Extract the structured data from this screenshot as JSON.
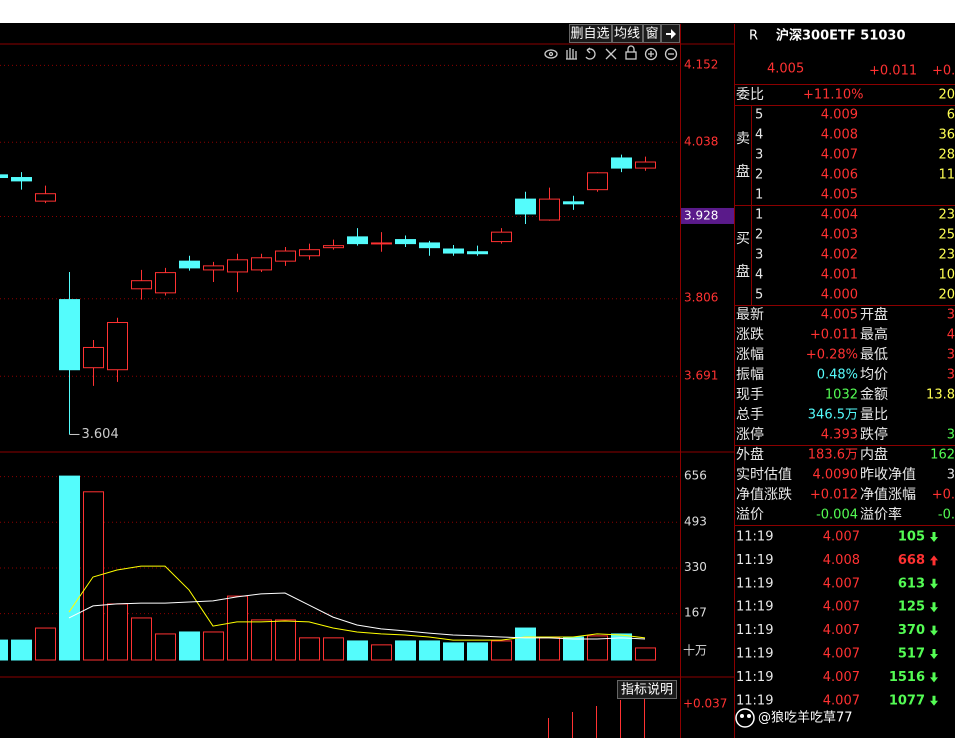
{
  "toolbar": {
    "buttons": [
      "删自选",
      "均线",
      "窗"
    ]
  },
  "chart_data": [
    {
      "type": "candlestick",
      "categories": [
        null,
        null,
        null,
        null,
        null,
        null,
        null,
        null,
        null,
        null,
        null,
        null,
        null,
        null,
        null,
        null,
        null,
        null,
        null,
        null,
        null,
        null,
        null,
        null,
        null,
        null,
        null,
        null
      ],
      "open": [
        3.989,
        3.985,
        3.95,
        3.804,
        3.703,
        3.7,
        3.82,
        3.814,
        3.861,
        3.848,
        3.845,
        3.848,
        3.861,
        3.869,
        3.881,
        3.897,
        3.887,
        3.893,
        3.888,
        3.879,
        3.875,
        3.89,
        3.953,
        3.922,
        3.949,
        3.967,
        4.014,
        3.999
      ],
      "high": [
        3.993,
        3.993,
        3.973,
        3.845,
        3.744,
        3.777,
        3.848,
        3.851,
        3.869,
        3.86,
        3.872,
        3.872,
        3.882,
        3.887,
        3.893,
        3.91,
        3.904,
        3.899,
        3.891,
        3.885,
        3.884,
        3.91,
        3.964,
        3.97,
        3.958,
        3.993,
        4.019,
        4.016
      ],
      "low": [
        3.982,
        3.967,
        3.947,
        3.604,
        3.676,
        3.682,
        3.804,
        3.81,
        3.847,
        3.83,
        3.815,
        3.845,
        3.854,
        3.863,
        3.878,
        3.884,
        3.875,
        3.882,
        3.869,
        3.869,
        3.869,
        3.887,
        3.916,
        3.921,
        3.937,
        3.964,
        3.993,
        3.995
      ],
      "close": [
        3.985,
        3.98,
        3.961,
        3.7,
        3.733,
        3.77,
        3.832,
        3.844,
        3.851,
        3.854,
        3.863,
        3.866,
        3.876,
        3.878,
        3.884,
        3.887,
        3.888,
        3.887,
        3.881,
        3.873,
        3.872,
        3.904,
        3.931,
        3.953,
        3.946,
        3.992,
        3.999,
        4.008
      ],
      "up_color": "#ff3232",
      "down_color": "#54fcfc",
      "ylim": [
        3.578,
        4.183
      ],
      "yticks": [
        4.152,
        4.038,
        3.928,
        3.806,
        3.691
      ],
      "highlight_ytick": 3.928,
      "grid": true
    },
    {
      "type": "bar",
      "categories": [
        null,
        null,
        null,
        null,
        null,
        null,
        null,
        null,
        null,
        null,
        null,
        null,
        null,
        null,
        null,
        null,
        null,
        null,
        null,
        null,
        null,
        null,
        null,
        null,
        null,
        null,
        null,
        null
      ],
      "values": [
        71,
        71,
        114,
        656,
        600,
        200,
        150,
        93,
        100,
        100,
        228,
        143,
        143,
        79,
        79,
        68,
        54,
        68,
        68,
        61,
        61,
        68,
        114,
        79,
        82,
        86,
        93,
        43
      ],
      "series": [
        {
          "color": "#ffff00",
          "values": [
            null,
            null,
            null,
            171,
            296,
            321,
            335,
            335,
            250,
            121,
            136,
            136,
            139,
            136,
            114,
            100,
            93,
            89,
            82,
            71,
            71,
            71,
            82,
            82,
            82,
            93,
            89,
            79
          ]
        },
        {
          "color": "#ffffff",
          "values": [
            null,
            null,
            null,
            150,
            193,
            200,
            203,
            203,
            207,
            211,
            225,
            236,
            239,
            196,
            153,
            125,
            111,
            104,
            96,
            89,
            86,
            82,
            79,
            79,
            75,
            75,
            79,
            75
          ]
        }
      ],
      "ylim": [
        0,
        742
      ],
      "yticks": [
        656,
        493,
        330,
        167
      ],
      "y_unit": "十万",
      "grid": true
    }
  ],
  "indicator": {
    "button": "指标说明",
    "label": "+0.037"
  },
  "quote": {
    "code_tag": "R",
    "title": "沪深300ETF 51030",
    "price": "4.005",
    "change": "+0.011",
    "change_pct": "+0.2",
    "commission_label": "委比",
    "commission_ratio": "+11.10%",
    "commission_diff": "20",
    "sell_label": [
      "卖",
      "盘"
    ],
    "buy_label": [
      "买",
      "盘"
    ],
    "sell": [
      {
        "level": "5",
        "price": "4.009",
        "volume": "6"
      },
      {
        "level": "4",
        "price": "4.008",
        "volume": "36"
      },
      {
        "level": "3",
        "price": "4.007",
        "volume": "28"
      },
      {
        "level": "2",
        "price": "4.006",
        "volume": "11"
      },
      {
        "level": "1",
        "price": "4.005"
      }
    ],
    "buy": [
      {
        "level": "1",
        "price": "4.004",
        "volume": "23"
      },
      {
        "level": "2",
        "price": "4.003",
        "volume": "25"
      },
      {
        "level": "3",
        "price": "4.002",
        "volume": "23"
      },
      {
        "level": "4",
        "price": "4.001",
        "volume": "10"
      },
      {
        "level": "5",
        "price": "4.000",
        "volume": "20"
      }
    ],
    "stats": [
      {
        "label": "最新",
        "value": "4.005",
        "color": "#ff3232",
        "label2": "开盘",
        "value2": "3",
        "color2": "#ff3232"
      },
      {
        "label": "涨跌",
        "value": "+0.011",
        "color": "#ff3232",
        "label2": "最高",
        "value2": "4",
        "color2": "#ff3232"
      },
      {
        "label": "涨幅",
        "value": "+0.28%",
        "color": "#ff3232",
        "label2": "最低",
        "value2": "3",
        "color2": "#ff3232"
      },
      {
        "label": "振幅",
        "value": "0.48%",
        "color": "#54fcfc",
        "label2": "均价",
        "value2": "3",
        "color2": "#ff3232"
      },
      {
        "label": "现手",
        "value": "1032",
        "color": "#54fc54",
        "label2": "金额",
        "value2": "13.8",
        "color2": "#ffff54"
      },
      {
        "label": "总手",
        "value": "346.5万",
        "color": "#54fcfc",
        "label2": "量比"
      },
      {
        "label": "涨停",
        "value": "4.393",
        "color": "#ff3232",
        "label2": "跌停",
        "value2": "3",
        "color2": "#54fc54"
      },
      {
        "label": "外盘",
        "value": "183.6万",
        "color": "#ff3232",
        "label2": "内盘",
        "value2": "162",
        "color2": "#54fc54"
      },
      {
        "label": "实时估值",
        "value": "4.0090",
        "color": "#ff3232",
        "label2": "昨收净值",
        "value2": "3",
        "color2": "#e8e8e8"
      },
      {
        "label": "净值涨跌",
        "value": "+0.012",
        "color": "#ff3232",
        "label2": "净值涨幅",
        "value2": "+0.",
        "color2": "#ff3232"
      },
      {
        "label": "溢价",
        "value": "-0.004",
        "color": "#54fc54",
        "label2": "溢价率",
        "value2": "-0.",
        "color2": "#54fc54"
      }
    ],
    "ticks": [
      {
        "time": "11:19",
        "price": "4.007",
        "volume": "105",
        "dir": "down"
      },
      {
        "time": "11:19",
        "price": "4.008",
        "volume": "668",
        "dir": "up"
      },
      {
        "time": "11:19",
        "price": "4.007",
        "volume": "613",
        "dir": "down"
      },
      {
        "time": "11:19",
        "price": "4.007",
        "volume": "125",
        "dir": "down"
      },
      {
        "time": "11:19",
        "price": "4.007",
        "volume": "370",
        "dir": "down"
      },
      {
        "time": "11:19",
        "price": "4.007",
        "volume": "517",
        "dir": "down"
      },
      {
        "time": "11:19",
        "price": "4.007",
        "volume": "1516",
        "dir": "down"
      },
      {
        "time": "11:19",
        "price": "4.007",
        "volume": "1077",
        "dir": "down"
      }
    ]
  },
  "watermark": "@狼吃羊吃草77"
}
